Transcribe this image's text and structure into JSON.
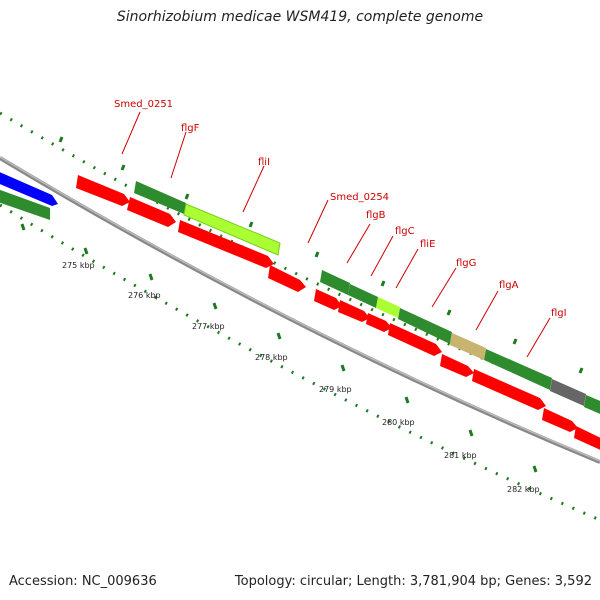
{
  "title": "Sinorhizobium medicae WSM419, complete genome",
  "accession_text": "Accession: NC_009636",
  "stats_text": "Topology: circular; Length: 3,781,904 bp; Genes: 3,592",
  "scale_labels": [
    "275 kbp",
    "276 kbp",
    "277 kbp",
    "278 kbp",
    "279 kbp",
    "280 kbp",
    "281 kbp",
    "282 kbp"
  ],
  "gene_labels": [
    "Smed_0251",
    "flgF",
    "fliI",
    "Smed_0254",
    "flgB",
    "flgC",
    "fliE",
    "flgG",
    "flgA",
    "flgI"
  ],
  "colors": {
    "red_gene": "#ff0000",
    "dark_green_feature": "#2e8b2e",
    "light_green_feature": "#aaff33",
    "blue_feature": "#0000ff",
    "tan_feature": "#c8b46e",
    "gray_feature": "#666666",
    "backbone": "#888888",
    "ticks": "#1e7a1e",
    "label_red": "#cc0000"
  }
}
